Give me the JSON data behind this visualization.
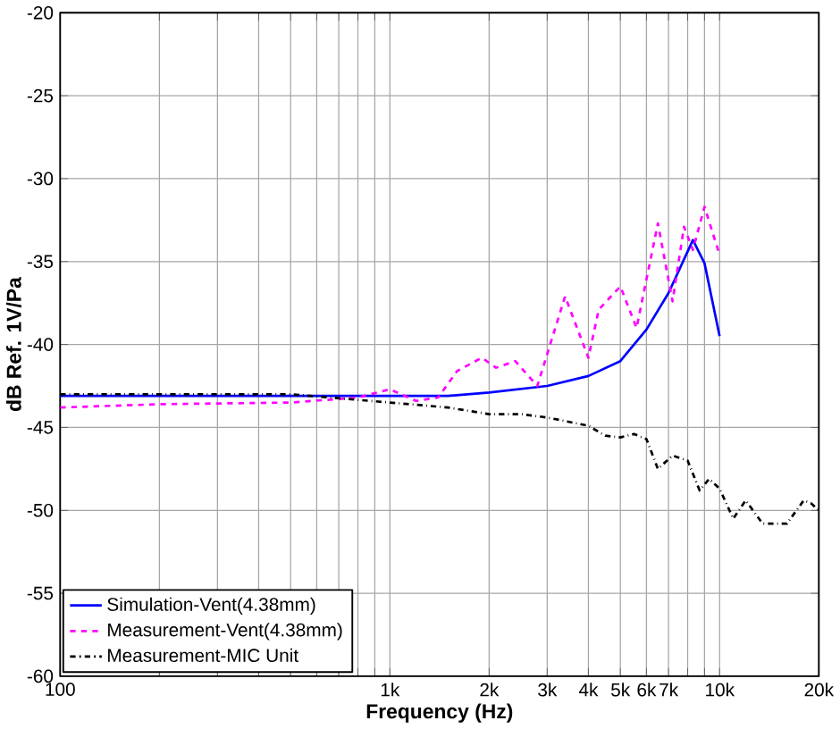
{
  "chart_data": {
    "type": "line",
    "xlabel": "Frequency (Hz)",
    "ylabel": "dB Ref. 1V/Pa",
    "log": "x",
    "xlim": [
      100,
      20000
    ],
    "ylim": [
      -60,
      -20
    ],
    "xticks": [
      100,
      {
        "value": 200,
        "label": null
      },
      {
        "value": 300,
        "label": null
      },
      {
        "value": 400,
        "label": null
      },
      {
        "value": 500,
        "label": null
      },
      {
        "value": 600,
        "label": null
      },
      {
        "value": 700,
        "label": null
      },
      {
        "value": 800,
        "label": null
      },
      {
        "value": 900,
        "label": null
      },
      {
        "value": 1000,
        "label": "1k"
      },
      {
        "value": 2000,
        "label": "2k"
      },
      {
        "value": 3000,
        "label": "3k"
      },
      {
        "value": 4000,
        "label": "4k"
      },
      {
        "value": 5000,
        "label": "5k"
      },
      {
        "value": 6000,
        "label": "6k"
      },
      {
        "value": 7000,
        "label": "7k"
      },
      {
        "value": 8000,
        "label": null
      },
      {
        "value": 9000,
        "label": null
      },
      {
        "value": 10000,
        "label": "10k"
      },
      {
        "value": 20000,
        "label": "20k"
      }
    ],
    "yticks": [
      -60,
      -55,
      -50,
      -45,
      -40,
      -35,
      -30,
      -25,
      -20
    ],
    "grid": true,
    "legend": "bottom left",
    "marker": "none",
    "series": [
      {
        "name": "Simulation-Vent(4.38mm)",
        "color": "#0000ff",
        "line_style": "solid",
        "x": [
          100,
          500,
          1000,
          1500,
          2000,
          3000,
          4000,
          5000,
          6000,
          7000,
          8300,
          9000,
          10000
        ],
        "values": [
          -43.1,
          -43.1,
          -43.1,
          -43.1,
          -42.9,
          -42.5,
          -41.9,
          -41.0,
          -39.1,
          -36.9,
          -33.7,
          -35.1,
          -39.5
        ]
      },
      {
        "name": "Measurement-Vent(4.38mm)",
        "color": "#ff00ff",
        "line_style": "dashed",
        "x": [
          100,
          200,
          500,
          800,
          1000,
          1200,
          1400,
          1600,
          1900,
          2100,
          2400,
          2800,
          3400,
          4000,
          4300,
          5000,
          5600,
          6500,
          7200,
          7800,
          8300,
          9000,
          10000
        ],
        "values": [
          -43.8,
          -43.6,
          -43.5,
          -43.2,
          -42.7,
          -43.4,
          -43.2,
          -41.6,
          -40.8,
          -41.4,
          -41.0,
          -42.5,
          -37.1,
          -40.8,
          -37.9,
          -36.5,
          -39.0,
          -32.7,
          -37.4,
          -32.9,
          -34.3,
          -31.7,
          -34.6
        ]
      },
      {
        "name": "Measurement-MIC Unit",
        "color": "#000000",
        "line_style": "dashdot",
        "x": [
          100,
          500,
          1000,
          1500,
          2000,
          2500,
          3000,
          4000,
          4500,
          5000,
          5500,
          6000,
          6500,
          7200,
          8000,
          8700,
          9300,
          10000,
          11000,
          12000,
          13500,
          16000,
          18000,
          19000,
          20000
        ],
        "values": [
          -43.0,
          -43.0,
          -43.5,
          -43.8,
          -44.2,
          -44.2,
          -44.4,
          -44.9,
          -45.5,
          -45.6,
          -45.4,
          -45.7,
          -47.5,
          -46.7,
          -47.0,
          -48.8,
          -48.1,
          -48.7,
          -50.5,
          -49.4,
          -50.8,
          -50.8,
          -49.4,
          -49.6,
          -50.0
        ]
      }
    ]
  }
}
